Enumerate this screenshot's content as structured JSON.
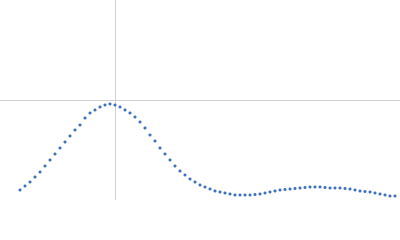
{
  "chart_data": {
    "type": "scatter",
    "color": "#3f6fbf",
    "grid": true,
    "xlim": [
      0,
      4
    ],
    "ylim": [
      0,
      2
    ],
    "xticks": [
      1.15
    ],
    "yticks": [
      1
    ],
    "x": [
      0.2,
      0.25,
      0.3,
      0.35,
      0.4,
      0.45,
      0.5,
      0.55,
      0.6,
      0.65,
      0.7,
      0.75,
      0.8,
      0.85,
      0.9,
      0.95,
      1.0,
      1.05,
      1.1,
      1.15,
      1.2,
      1.25,
      1.3,
      1.35,
      1.4,
      1.45,
      1.5,
      1.55,
      1.6,
      1.65,
      1.7,
      1.75,
      1.8,
      1.85,
      1.9,
      1.95,
      2.0,
      2.05,
      2.1,
      2.15,
      2.2,
      2.25,
      2.3,
      2.35,
      2.4,
      2.45,
      2.5,
      2.55,
      2.6,
      2.65,
      2.7,
      2.75,
      2.8,
      2.85,
      2.9,
      2.95,
      3.0,
      3.05,
      3.1,
      3.15,
      3.2,
      3.25,
      3.3,
      3.35,
      3.4,
      3.45,
      3.5,
      3.55,
      3.6,
      3.65,
      3.7,
      3.75,
      3.8,
      3.85,
      3.9,
      3.95
    ],
    "values": [
      0.1,
      0.14,
      0.18,
      0.23,
      0.28,
      0.34,
      0.4,
      0.46,
      0.52,
      0.58,
      0.64,
      0.7,
      0.75,
      0.82,
      0.87,
      0.9,
      0.93,
      0.95,
      0.96,
      0.95,
      0.93,
      0.9,
      0.87,
      0.83,
      0.78,
      0.72,
      0.65,
      0.59,
      0.52,
      0.46,
      0.4,
      0.34,
      0.29,
      0.25,
      0.21,
      0.18,
      0.15,
      0.13,
      0.11,
      0.09,
      0.08,
      0.07,
      0.06,
      0.05,
      0.05,
      0.05,
      0.05,
      0.055,
      0.06,
      0.07,
      0.08,
      0.09,
      0.1,
      0.105,
      0.11,
      0.115,
      0.12,
      0.125,
      0.13,
      0.13,
      0.13,
      0.125,
      0.12,
      0.12,
      0.12,
      0.115,
      0.11,
      0.1,
      0.09,
      0.085,
      0.08,
      0.07,
      0.06,
      0.05,
      0.04,
      0.04
    ]
  }
}
